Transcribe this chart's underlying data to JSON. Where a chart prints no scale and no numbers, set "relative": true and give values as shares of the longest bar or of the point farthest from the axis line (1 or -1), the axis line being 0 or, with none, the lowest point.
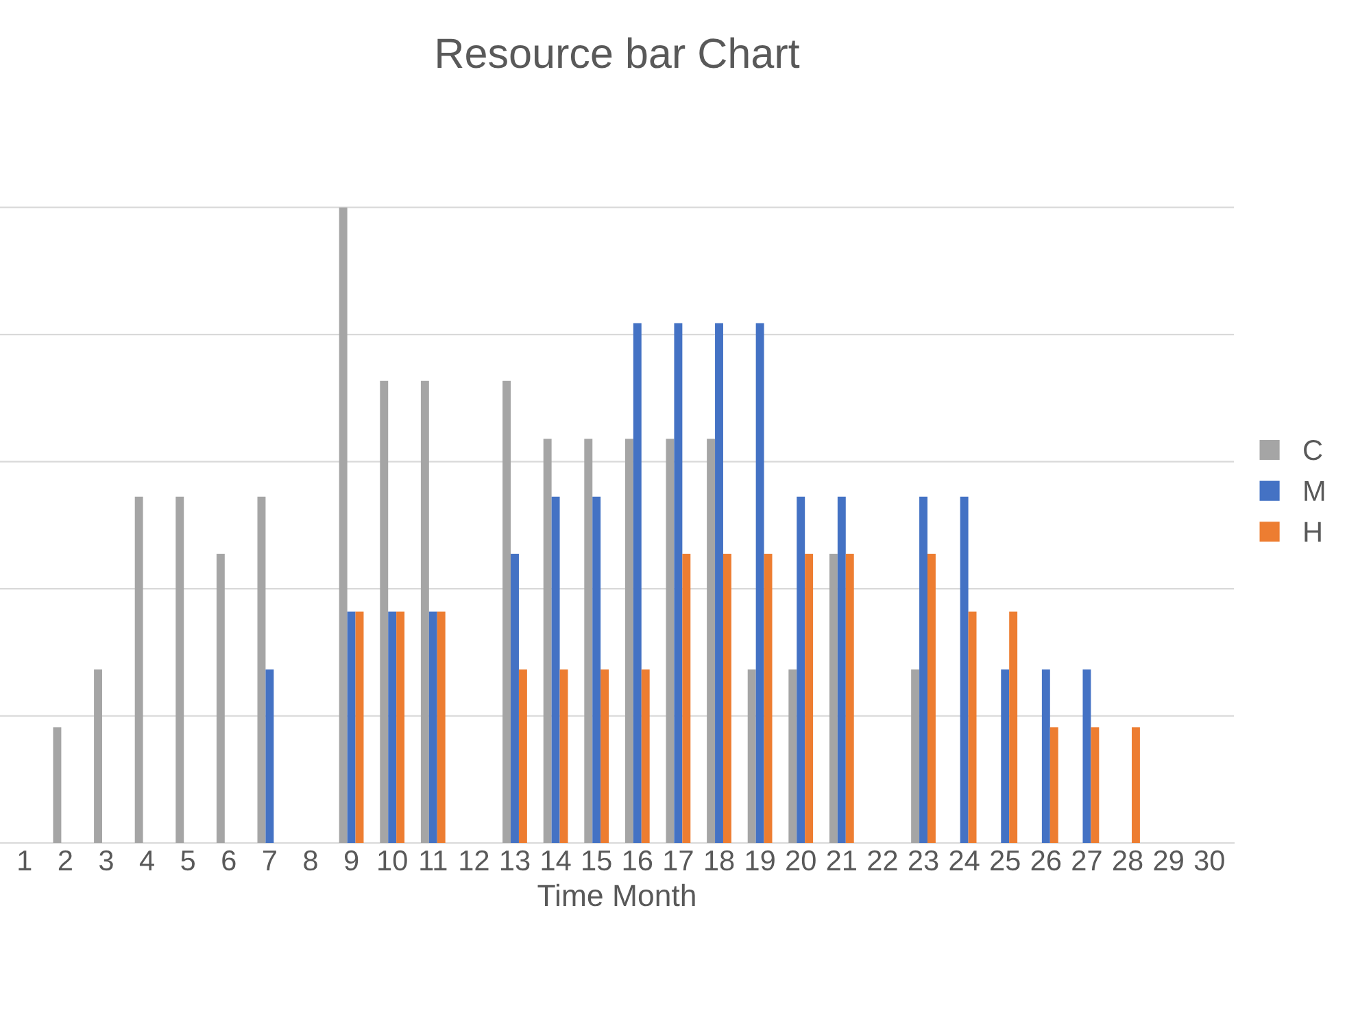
{
  "chart_data": {
    "type": "bar",
    "title": "Resource bar Chart",
    "xlabel": "Time Month",
    "categories": [
      "1",
      "2",
      "3",
      "4",
      "5",
      "6",
      "7",
      "8",
      "9",
      "10",
      "11",
      "12",
      "13",
      "14",
      "15",
      "16",
      "17",
      "18",
      "19",
      "20",
      "21",
      "22",
      "23",
      "24",
      "25",
      "26",
      "27",
      "28",
      "29",
      "30"
    ],
    "relative": true,
    "grid": "y",
    "legend": "right",
    "series": [
      {
        "name": "C",
        "color": "#a5a5a5",
        "values": [
          null,
          0.182,
          0.273,
          0.545,
          0.545,
          0.455,
          0.545,
          null,
          1,
          0.727,
          0.727,
          null,
          0.727,
          0.636,
          0.636,
          0.636,
          0.636,
          0.636,
          0.273,
          0.273,
          0.455,
          null,
          0.273,
          null,
          null,
          null,
          null,
          null,
          null,
          null
        ]
      },
      {
        "name": "M",
        "color": "#4472c4",
        "values": [
          null,
          null,
          null,
          null,
          null,
          null,
          0.273,
          null,
          0.364,
          0.364,
          0.364,
          null,
          0.455,
          0.545,
          0.545,
          0.818,
          0.818,
          0.818,
          0.818,
          0.545,
          0.545,
          null,
          0.545,
          0.545,
          0.273,
          0.273,
          0.273,
          null,
          null,
          null
        ]
      },
      {
        "name": "H",
        "color": "#ed7d31",
        "values": [
          null,
          null,
          null,
          null,
          null,
          null,
          null,
          null,
          0.364,
          0.364,
          0.364,
          null,
          0.273,
          0.273,
          0.273,
          0.273,
          0.455,
          0.455,
          0.455,
          0.455,
          0.455,
          null,
          0.455,
          0.364,
          0.364,
          0.182,
          0.182,
          0.182,
          null,
          null
        ]
      }
    ]
  }
}
